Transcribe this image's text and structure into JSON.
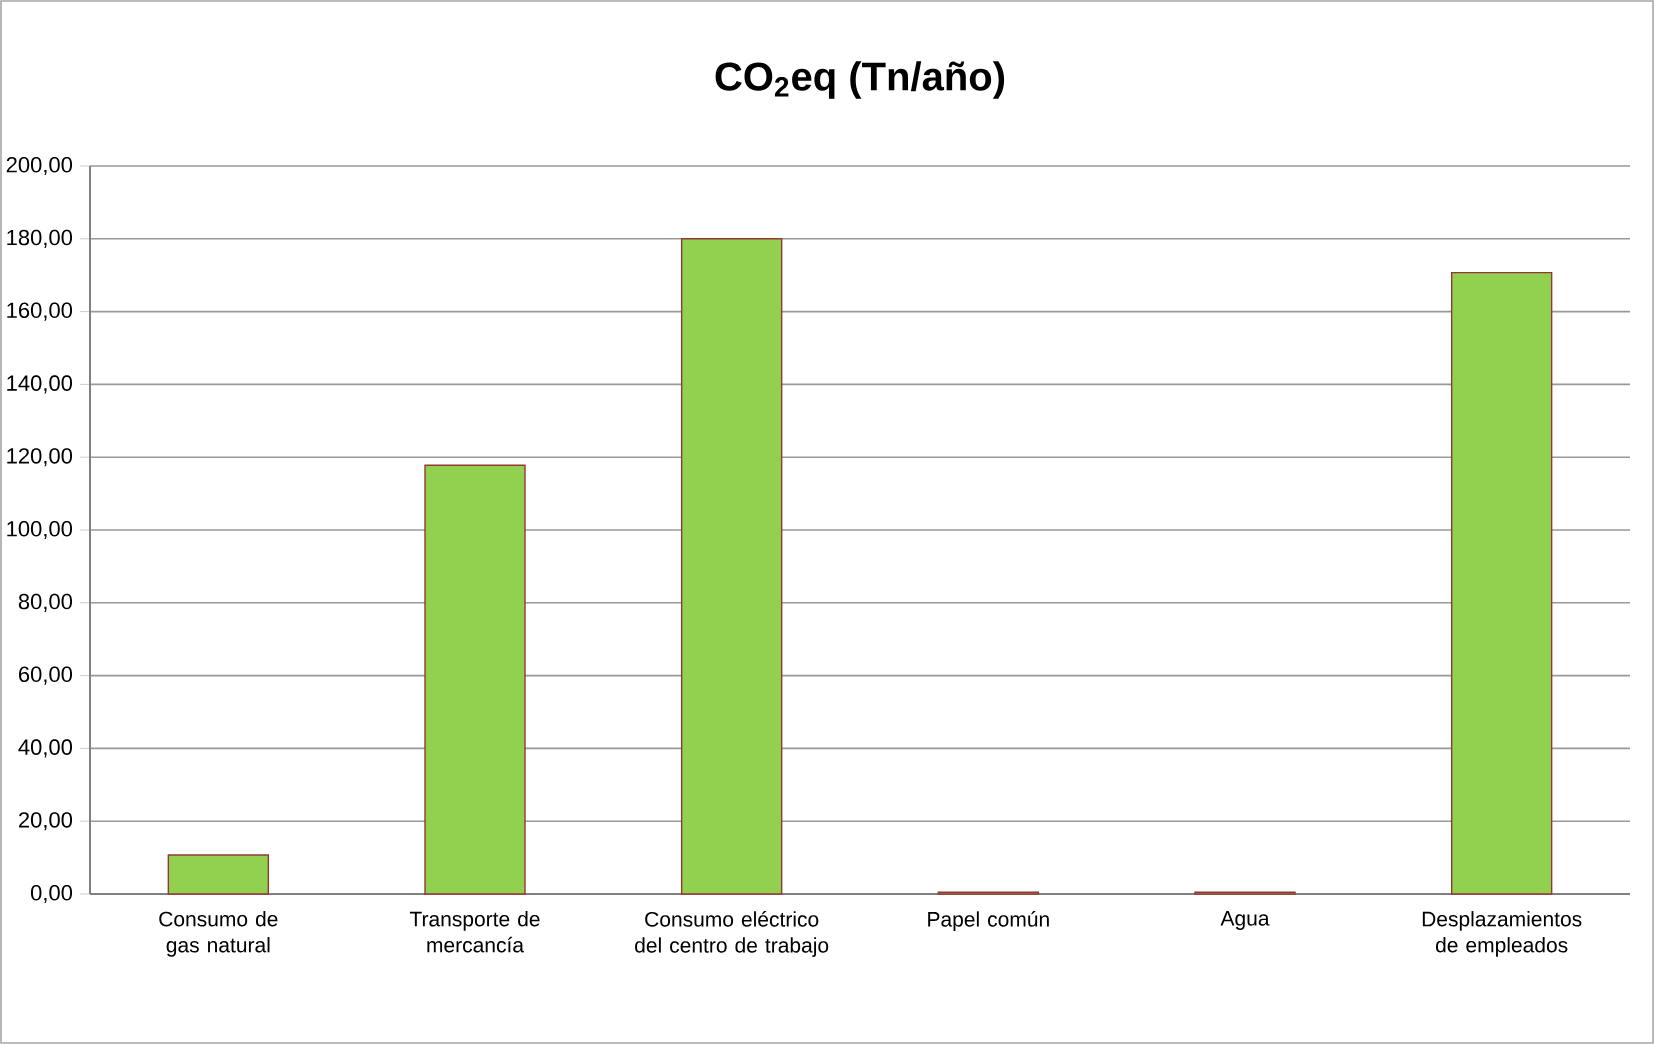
{
  "chart_data": {
    "type": "bar",
    "title": "CO$_{2}$eq (Tn/año)",
    "categories": [
      "Consumo de gas natural",
      "Transporte de mercancía",
      "Consumo eléctrico del centro de trabajo",
      "Papel común",
      "Agua",
      "Desplazamientos de empleados"
    ],
    "values": [
      10.7,
      117.8,
      180,
      0.5,
      0.5,
      170.7
    ],
    "color": "#92d050",
    "ylim": [
      0,
      200
    ],
    "yticks": [
      {
        "value": 0,
        "label": "0,00"
      },
      {
        "value": 20,
        "label": "20,00"
      },
      {
        "value": 40,
        "label": "40,00"
      },
      {
        "value": 60,
        "label": "60,00"
      },
      {
        "value": 80,
        "label": "80,00"
      },
      {
        "value": 100,
        "label": "100,00"
      },
      {
        "value": 120,
        "label": "120,00"
      },
      {
        "value": 140,
        "label": "140,00"
      },
      {
        "value": 160,
        "label": "160,00"
      },
      {
        "value": 180,
        "label": "180,00"
      },
      {
        "value": 200,
        "label": "200,00"
      }
    ],
    "grid": "y"
  }
}
